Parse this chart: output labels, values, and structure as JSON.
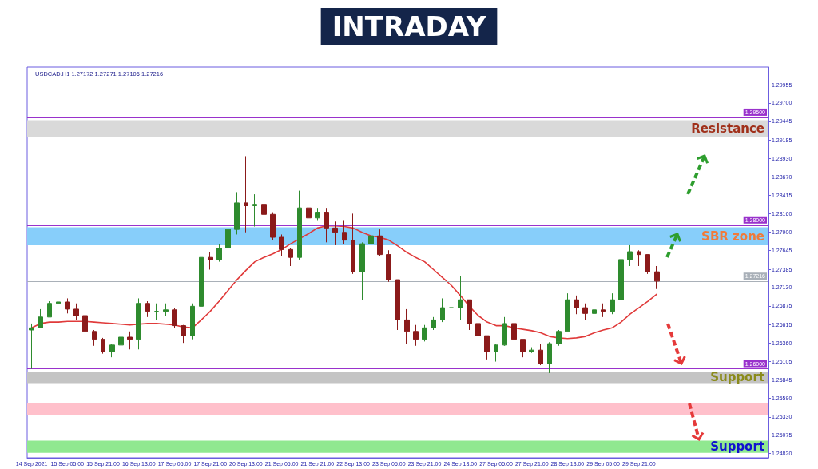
{
  "chart_data": {
    "type": "candlestick",
    "title": "INTRADAY",
    "categories": [
      "14 Sep 2021",
      null,
      null,
      null,
      "15 Sep 05:00",
      null,
      null,
      null,
      "15 Sep 21:00",
      null,
      null,
      null,
      "16 Sep 13:00",
      null,
      null,
      null,
      "17 Sep 05:00",
      null,
      null,
      null,
      "17 Sep 21:00",
      null,
      null,
      null,
      "20 Sep 13:00",
      null,
      null,
      null,
      "21 Sep 05:00",
      null,
      null,
      null,
      "21 Sep 21:00",
      null,
      null,
      null,
      "22 Sep 13:00",
      null,
      null,
      null,
      "23 Sep 05:00",
      null,
      null,
      null,
      "23 Sep 21:00",
      null,
      null,
      null,
      "24 Sep 13:00",
      null,
      null,
      null,
      "27 Sep 05:00",
      null,
      null,
      null,
      "27 Sep 21:00",
      null,
      null,
      null,
      "28 Sep 13:00",
      null,
      null,
      null,
      "29 Sep 05:00",
      null,
      null,
      null,
      "29 Sep 21:00",
      null,
      null,
      null,
      null,
      null,
      null,
      null,
      null,
      null,
      null,
      null,
      null,
      null,
      null
    ],
    "ohlc": [
      [
        1.2654,
        1.2663,
        1.26,
        1.2657
      ],
      [
        1.2657,
        1.2683,
        1.2657,
        1.2672
      ],
      [
        1.2672,
        1.2694,
        1.2672,
        1.2691
      ],
      [
        1.2691,
        1.2707,
        1.2687,
        1.2693
      ],
      [
        1.2693,
        1.2698,
        1.2677,
        1.2683
      ],
      [
        1.2683,
        1.2691,
        1.2668,
        1.2674
      ],
      [
        1.2674,
        1.2694,
        1.2646,
        1.2652
      ],
      [
        1.2652,
        1.2654,
        1.2632,
        1.2641
      ],
      [
        1.2641,
        1.2643,
        1.2621,
        1.2624
      ],
      [
        1.2624,
        1.2635,
        1.2616,
        1.2633
      ],
      [
        1.2633,
        1.2646,
        1.2632,
        1.2644
      ],
      [
        1.2644,
        1.2652,
        1.2627,
        1.2641
      ],
      [
        1.2641,
        1.2698,
        1.2627,
        1.2691
      ],
      [
        1.2691,
        1.2694,
        1.2672,
        1.268
      ],
      [
        1.268,
        1.2691,
        1.2668,
        1.268
      ],
      [
        1.268,
        1.2691,
        1.2674,
        1.2682
      ],
      [
        1.2682,
        1.2685,
        1.2657,
        1.266
      ],
      [
        1.266,
        1.2661,
        1.2636,
        1.2646
      ],
      [
        1.2646,
        1.2691,
        1.2641,
        1.2687
      ],
      [
        1.2687,
        1.276,
        1.2685,
        1.2755
      ],
      [
        1.2755,
        1.2763,
        1.2738,
        1.2752
      ],
      [
        1.2752,
        1.2774,
        1.2749,
        1.2768
      ],
      [
        1.2768,
        1.2802,
        1.2766,
        1.2794
      ],
      [
        1.2794,
        1.2846,
        1.2787,
        1.2831
      ],
      [
        1.2831,
        1.2896,
        1.279,
        1.2827
      ],
      [
        1.2827,
        1.2843,
        1.2798,
        1.2829
      ],
      [
        1.2829,
        1.2831,
        1.2809,
        1.2815
      ],
      [
        1.2815,
        1.2818,
        1.2779,
        1.2783
      ],
      [
        1.2783,
        1.2787,
        1.2757,
        1.2766
      ],
      [
        1.2766,
        1.2768,
        1.2743,
        1.2755
      ],
      [
        1.2755,
        1.2848,
        1.2752,
        1.2824
      ],
      [
        1.2824,
        1.2827,
        1.2787,
        1.281
      ],
      [
        1.281,
        1.2824,
        1.2807,
        1.2818
      ],
      [
        1.2818,
        1.2824,
        1.2776,
        1.2796
      ],
      [
        1.2796,
        1.2805,
        1.2772,
        1.279
      ],
      [
        1.279,
        1.2807,
        1.2774,
        1.2779
      ],
      [
        1.2779,
        1.2816,
        1.2732,
        1.2735
      ],
      [
        1.2735,
        1.2776,
        1.2696,
        1.2774
      ],
      [
        1.2774,
        1.2794,
        1.2765,
        1.2785
      ],
      [
        1.2785,
        1.2794,
        1.2757,
        1.2759
      ],
      [
        1.2759,
        1.2765,
        1.2721,
        1.2724
      ],
      [
        1.2724,
        1.2724,
        1.2654,
        1.2668
      ],
      [
        1.2668,
        1.2683,
        1.2635,
        1.2652
      ],
      [
        1.2652,
        1.2661,
        1.2632,
        1.2641
      ],
      [
        1.2641,
        1.2661,
        1.2638,
        1.2657
      ],
      [
        1.2657,
        1.2672,
        1.2654,
        1.2668
      ],
      [
        1.2668,
        1.2698,
        1.2665,
        1.2685
      ],
      [
        1.2685,
        1.2698,
        1.2668,
        1.2685
      ],
      [
        1.2685,
        1.2729,
        1.2668,
        1.2696
      ],
      [
        1.2696,
        1.2696,
        1.2654,
        1.2663
      ],
      [
        1.2663,
        1.2663,
        1.2638,
        1.2646
      ],
      [
        1.2646,
        1.2646,
        1.2613,
        1.2624
      ],
      [
        1.2624,
        1.2635,
        1.261,
        1.2633
      ],
      [
        1.2633,
        1.2672,
        1.2632,
        1.2663
      ],
      [
        1.2663,
        1.2663,
        1.2632,
        1.2641
      ],
      [
        1.2641,
        1.2641,
        1.2616,
        1.2624
      ],
      [
        1.2624,
        1.263,
        1.2622,
        1.2626
      ],
      [
        1.2626,
        1.2635,
        1.2605,
        1.2607
      ],
      [
        1.2607,
        1.2637,
        1.2594,
        1.2635
      ],
      [
        1.2635,
        1.2654,
        1.2632,
        1.2652
      ],
      [
        1.2652,
        1.2705,
        1.2652,
        1.2696
      ],
      [
        1.2696,
        1.2702,
        1.2676,
        1.2685
      ],
      [
        1.2685,
        1.2691,
        1.2668,
        1.2677
      ],
      [
        1.2677,
        1.2698,
        1.2672,
        1.2682
      ],
      [
        1.2682,
        1.2691,
        1.2672,
        1.268
      ],
      [
        1.268,
        1.2705,
        1.2676,
        1.2696
      ],
      [
        1.2696,
        1.2757,
        1.2694,
        1.2752
      ],
      [
        1.2752,
        1.2772,
        1.2743,
        1.2763
      ],
      [
        1.2763,
        1.2765,
        1.2743,
        1.2759
      ],
      [
        1.2759,
        1.2759,
        1.2732,
        1.2735
      ],
      [
        1.2735,
        1.2743,
        1.2711,
        1.2722
      ],
      null,
      null,
      null,
      null,
      null,
      null,
      null,
      null,
      null,
      null,
      null,
      null
    ],
    "series": [
      {
        "type": "line",
        "color": "#e03a3a",
        "values": [
          1.2657,
          1.2663,
          1.2665,
          1.2665,
          1.2666,
          1.2666,
          1.2666,
          1.2665,
          1.2664,
          1.2663,
          1.2662,
          1.2661,
          1.2662,
          1.2663,
          1.2663,
          1.2662,
          1.2661,
          1.2658,
          1.2657,
          1.2668,
          1.268,
          1.2694,
          1.2709,
          1.2724,
          1.2737,
          1.2749,
          1.2755,
          1.276,
          1.2766,
          1.2774,
          1.2781,
          1.2788,
          1.2796,
          1.2799,
          1.2799,
          1.2798,
          1.2796,
          1.279,
          1.2785,
          1.2783,
          1.2779,
          1.2771,
          1.2762,
          1.2755,
          1.2749,
          1.2738,
          1.2727,
          1.2716,
          1.2702,
          1.2687,
          1.2674,
          1.2665,
          1.266,
          1.266,
          1.2657,
          1.2655,
          1.2653,
          1.265,
          1.2645,
          1.2643,
          1.2642,
          1.2643,
          1.2645,
          1.265,
          1.2654,
          1.2657,
          1.2665,
          1.2676,
          1.2685,
          1.2694,
          1.2704,
          null,
          null,
          null,
          null,
          null,
          null,
          null,
          null,
          null,
          null,
          null,
          null
        ]
      }
    ],
    "ylim": [
      1.2476,
      1.302
    ],
    "yticks": [
      {
        "value": 1.29955,
        "label": "1.29955"
      },
      {
        "value": 1.297,
        "label": "1.29700"
      },
      {
        "value": 1.29445,
        "label": "1.29445"
      },
      {
        "value": 1.29185,
        "label": "1.29185"
      },
      {
        "value": 1.2893,
        "label": "1.28930"
      },
      {
        "value": 1.2867,
        "label": "1.28670"
      },
      {
        "value": 1.28415,
        "label": "1.28415"
      },
      {
        "value": 1.2816,
        "label": "1.28160"
      },
      {
        "value": 1.279,
        "label": "1.27900"
      },
      {
        "value": 1.27645,
        "label": "1.27645"
      },
      {
        "value": 1.27385,
        "label": "1.27385"
      },
      {
        "value": 1.2713,
        "label": "1.27130"
      },
      {
        "value": 1.26875,
        "label": "1.26875"
      },
      {
        "value": 1.26615,
        "label": "1.26615"
      },
      {
        "value": 1.2636,
        "label": "1.26360"
      },
      {
        "value": 1.26105,
        "label": "1.26105"
      },
      {
        "value": 1.25845,
        "label": "1.25845"
      },
      {
        "value": 1.2559,
        "label": "1.25590"
      },
      {
        "value": 1.2533,
        "label": "1.25330"
      },
      {
        "value": 1.25075,
        "label": "1.25075"
      },
      {
        "value": 1.2482,
        "label": "1.24820"
      }
    ],
    "ref_lines": [
      {
        "axis": "y",
        "value": 1.295,
        "label": "1.29500",
        "color": "#9932cc"
      },
      {
        "axis": "y",
        "value": 1.28,
        "label": "1.28000",
        "color": "#9932cc"
      },
      {
        "axis": "y",
        "value": 1.27216,
        "label": "1.27216",
        "color": "#a9b0b8"
      },
      {
        "axis": "y",
        "value": 1.26,
        "label": "1.26000",
        "color": "#9932cc"
      }
    ],
    "bands": [
      {
        "axis": "y",
        "from": 1.2923,
        "to": 1.2946,
        "label": "Resistance",
        "color": "#d9d9d9"
      },
      {
        "axis": "y",
        "from": 1.2772,
        "to": 1.2797,
        "label": "SBR zone",
        "color": "#87cefa"
      },
      {
        "axis": "y",
        "from": 1.258,
        "to": 1.2596,
        "label": "Support",
        "color": "#c4c4c4"
      },
      {
        "axis": "y",
        "from": 1.2535,
        "to": 1.2552,
        "color": "#ffc0cb"
      },
      {
        "axis": "y",
        "from": 1.2483,
        "to": 1.25,
        "label": "Support",
        "color": "#90e890"
      }
    ],
    "annotations": [
      "USDCAD.H1 1.27172 1.27271 1.27106 1.27216"
    ],
    "marker": "none"
  }
}
